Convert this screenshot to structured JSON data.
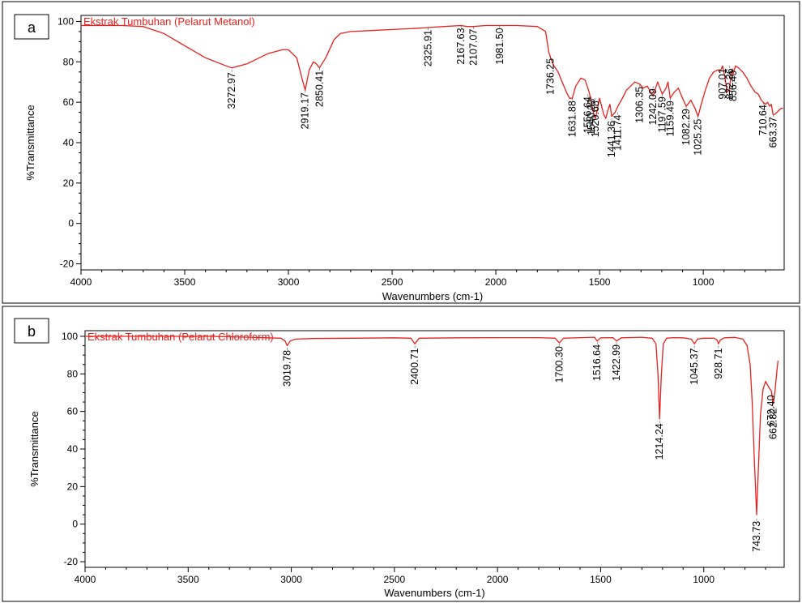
{
  "colors": {
    "spectrum": "#e8201e",
    "axis": "#000000",
    "background": "#ffffff"
  },
  "chart_data": [
    {
      "type": "line",
      "panel_label": "a",
      "title": "Ekstrak Tumbuhan (Pelarut Metanol)",
      "xlabel": "Wavenumbers (cm-1)",
      "ylabel": "%Transmittance",
      "xlim": [
        4000,
        610
      ],
      "ylim": [
        -23,
        103
      ],
      "x_ticks": [
        4000,
        3500,
        3000,
        2500,
        2000,
        1500,
        1000
      ],
      "y_ticks": [
        100,
        80,
        60,
        40,
        20,
        0,
        -20
      ],
      "grid": false,
      "series": [
        {
          "x": [
            4000,
            3900,
            3800,
            3700,
            3600,
            3500,
            3400,
            3300,
            3272.97,
            3200,
            3100,
            3030,
            3000,
            2960,
            2935,
            2919.17,
            2900,
            2880,
            2865,
            2850.41,
            2820,
            2780,
            2750,
            2700,
            2600,
            2500,
            2400,
            2325.91,
            2250,
            2167.63,
            2140,
            2107.07,
            2050,
            1981.5,
            1900,
            1800,
            1760,
            1745,
            1736.25,
            1720,
            1700,
            1680,
            1660,
            1645,
            1631.88,
            1615,
            1590,
            1570,
            1550,
            1540,
            1530,
            1520,
            1510,
            1500,
            1490,
            1480,
            1470,
            1460,
            1450,
            1441.36,
            1425,
            1411.74,
            1390,
            1370,
            1350,
            1330,
            1306.35,
            1290,
            1270,
            1242.09,
            1230,
            1220,
            1197.59,
            1180,
            1170,
            1159.49,
            1140,
            1120,
            1100,
            1082.29,
            1060,
            1040,
            1025.25,
            1010,
            990,
            970,
            950,
            930,
            915,
            907.01,
            895,
            885,
            875,
            862,
            856.4,
            845,
            830,
            810,
            790,
            770,
            750,
            735,
            720,
            710.64,
            700,
            690,
            680,
            672,
            663.37,
            655,
            645,
            635,
            625,
            615
          ],
          "y": [
            98,
            98,
            98,
            97.5,
            94,
            88,
            82,
            78,
            77,
            79,
            84,
            86,
            86,
            82,
            72,
            66,
            76,
            80,
            79,
            77,
            82,
            91,
            94,
            95,
            95.5,
            96,
            96.5,
            97,
            97.5,
            98,
            97.5,
            97.5,
            98,
            98,
            98,
            97.5,
            95,
            85,
            82,
            78,
            75,
            70,
            65,
            62,
            62,
            68,
            72,
            71,
            65,
            60,
            55,
            52,
            57,
            62,
            58,
            54,
            52,
            56,
            59,
            53,
            55,
            58,
            62,
            66,
            68,
            70,
            69,
            67,
            68,
            63,
            67,
            70,
            64,
            67,
            70,
            62,
            65,
            67,
            62,
            58,
            61,
            57,
            53,
            59,
            66,
            72,
            75,
            76,
            76,
            78,
            72,
            65,
            66,
            76,
            74,
            78,
            77,
            75,
            72,
            68,
            65,
            64,
            61,
            60,
            59,
            60,
            58,
            59,
            54,
            54,
            55,
            56,
            57,
            57
          ]
        }
      ],
      "peak_labels": [
        "3272.97",
        "2919.17",
        "2850.41",
        "2325.91",
        "2167.63",
        "2107.07",
        "1981.50",
        "1736.25",
        "1631.88",
        "1556.64",
        "1540.33",
        "1520.68",
        "1441.36",
        "1411.74",
        "1306.35",
        "1242.09",
        "1197.59",
        "1159.49",
        "1082.29",
        "1025.25",
        "907.01",
        "872.36",
        "856.40",
        "710.64",
        "663.37"
      ],
      "peak_x": [
        3272.97,
        2919.17,
        2850.41,
        2325.91,
        2167.63,
        2107.07,
        1981.5,
        1736.25,
        1631.88,
        1556.64,
        1540.33,
        1520.68,
        1441.36,
        1411.74,
        1306.35,
        1242.09,
        1197.59,
        1159.49,
        1082.29,
        1025.25,
        907.01,
        872.36,
        856.4,
        710.64,
        663.37
      ],
      "peak_label_top_y": [
        76,
        66,
        77,
        97,
        98,
        97.5,
        98,
        83,
        62,
        64,
        63,
        62,
        52,
        55,
        69,
        68,
        64,
        62,
        58,
        53,
        78,
        78,
        77,
        60,
        54
      ]
    },
    {
      "type": "line",
      "panel_label": "b",
      "title": "Ekstrak Tumbuhan (Pelarut Chloroform)",
      "xlabel": "Wavenumbers (cm-1)",
      "ylabel": "%Transmittance",
      "xlim": [
        4000,
        610
      ],
      "ylim": [
        -23,
        103
      ],
      "x_ticks": [
        4000,
        3500,
        3000,
        2500,
        2000,
        1500,
        1000
      ],
      "y_ticks": [
        100,
        80,
        60,
        40,
        20,
        0,
        -20
      ],
      "grid": false,
      "series": [
        {
          "x": [
            4000,
            3800,
            3600,
            3400,
            3200,
            3050,
            3030,
            3019.78,
            3005,
            2980,
            2900,
            2700,
            2500,
            2420,
            2400.71,
            2380,
            2200,
            2000,
            1800,
            1720,
            1700.3,
            1680,
            1600,
            1530,
            1516.64,
            1500,
            1440,
            1422.99,
            1400,
            1300,
            1250,
            1232,
            1222,
            1214.24,
            1206,
            1196,
            1180,
            1150,
            1100,
            1060,
            1045.37,
            1030,
            1000,
            950,
            935,
            928.71,
            920,
            900,
            850,
            810,
            790,
            775,
            765,
            755,
            743.73,
            735,
            725,
            712,
            700,
            690,
            680,
            672.4,
            668,
            662.82,
            655,
            645,
            640
          ],
          "y": [
            100,
            100,
            100,
            100,
            99.5,
            99,
            97.5,
            95,
            97.5,
            98.5,
            98.8,
            99,
            99.2,
            99,
            96,
            99,
            99.2,
            99.3,
            99.3,
            99,
            96.5,
            99,
            99.3,
            99.5,
            97.5,
            99.2,
            99.3,
            97.5,
            99.2,
            99.5,
            99,
            96,
            80,
            56,
            79,
            96,
            99,
            99.3,
            99.2,
            98.5,
            96,
            98.5,
            99,
            99,
            98,
            96,
            98,
            99.2,
            99.4,
            98.5,
            95,
            85,
            65,
            35,
            5,
            30,
            58,
            72,
            76,
            74,
            72,
            71,
            68,
            64,
            70,
            82,
            87
          ]
        }
      ],
      "peak_labels": [
        "3019.78",
        "2400.71",
        "1700.30",
        "1516.64",
        "1422.99",
        "1214.24",
        "1045.37",
        "928.71",
        "743.73",
        "672.40",
        "662.82"
      ],
      "peak_x": [
        3019.78,
        2400.71,
        1700.3,
        1516.64,
        1422.99,
        1214.24,
        1045.37,
        928.71,
        743.73,
        672.4,
        662.82
      ],
      "peak_label_top_y": [
        94,
        95,
        96,
        97,
        97,
        55,
        95,
        95,
        3,
        70,
        63
      ]
    }
  ]
}
